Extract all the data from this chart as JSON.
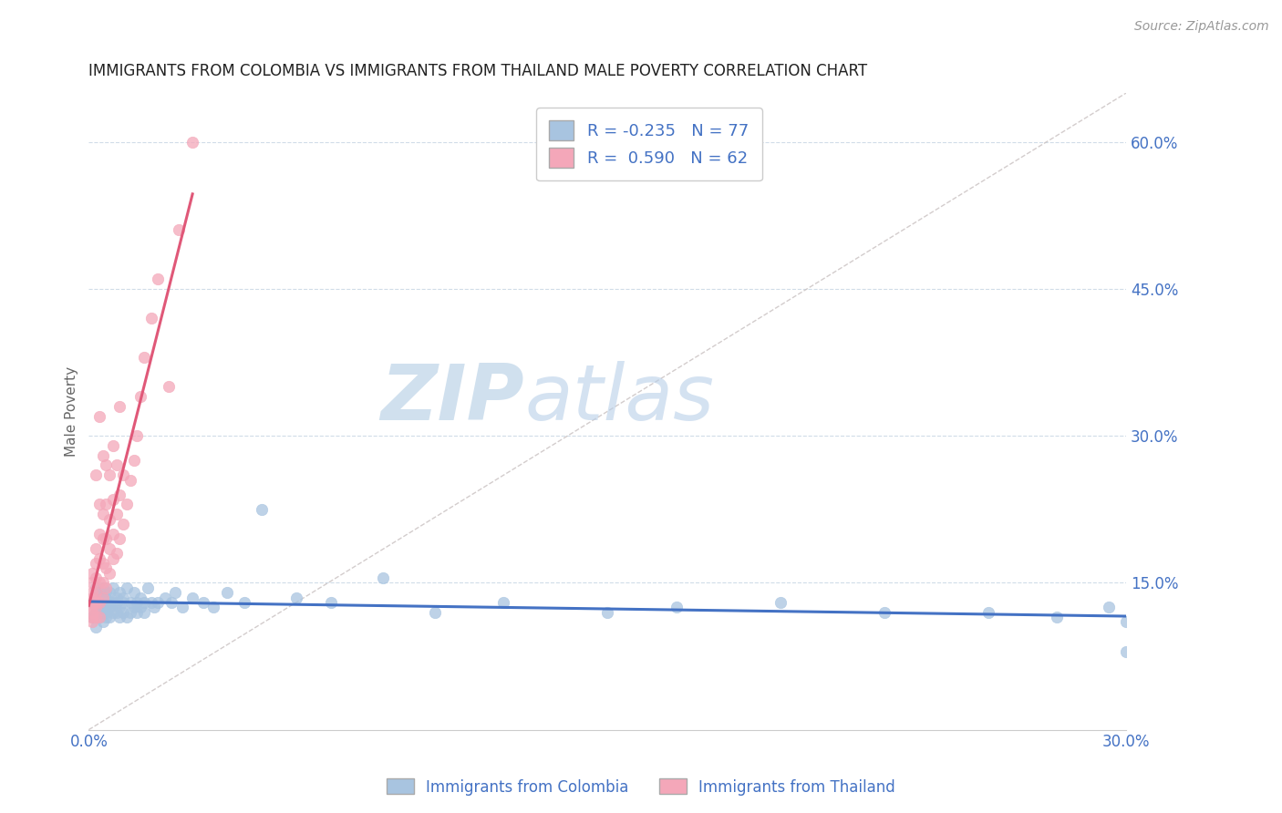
{
  "title": "IMMIGRANTS FROM COLOMBIA VS IMMIGRANTS FROM THAILAND MALE POVERTY CORRELATION CHART",
  "source": "Source: ZipAtlas.com",
  "ylabel": "Male Poverty",
  "colombia_R": -0.235,
  "colombia_N": 77,
  "thailand_R": 0.59,
  "thailand_N": 62,
  "xlim": [
    0.0,
    0.3
  ],
  "ylim": [
    0.0,
    0.65
  ],
  "yticks": [
    0.15,
    0.3,
    0.45,
    0.6
  ],
  "ytick_labels": [
    "15.0%",
    "30.0%",
    "45.0%",
    "60.0%"
  ],
  "colombia_color": "#a8c4e0",
  "thailand_color": "#f4a7b9",
  "colombia_line_color": "#4472c4",
  "thailand_line_color": "#e05878",
  "axis_label_color": "#4472c4",
  "grid_color": "#d0dce8",
  "watermark_color": "#d0e0ee",
  "colombia_scatter_x": [
    0.001,
    0.001,
    0.002,
    0.002,
    0.002,
    0.002,
    0.003,
    0.003,
    0.003,
    0.003,
    0.003,
    0.004,
    0.004,
    0.004,
    0.004,
    0.004,
    0.005,
    0.005,
    0.005,
    0.005,
    0.005,
    0.006,
    0.006,
    0.006,
    0.006,
    0.007,
    0.007,
    0.007,
    0.008,
    0.008,
    0.008,
    0.009,
    0.009,
    0.009,
    0.01,
    0.01,
    0.01,
    0.011,
    0.011,
    0.012,
    0.012,
    0.013,
    0.013,
    0.014,
    0.014,
    0.015,
    0.015,
    0.016,
    0.016,
    0.017,
    0.018,
    0.019,
    0.02,
    0.022,
    0.024,
    0.025,
    0.027,
    0.03,
    0.033,
    0.036,
    0.04,
    0.045,
    0.05,
    0.06,
    0.07,
    0.085,
    0.1,
    0.12,
    0.15,
    0.17,
    0.2,
    0.23,
    0.26,
    0.28,
    0.295,
    0.3,
    0.3
  ],
  "colombia_scatter_y": [
    0.13,
    0.115,
    0.13,
    0.145,
    0.12,
    0.105,
    0.135,
    0.125,
    0.14,
    0.115,
    0.12,
    0.135,
    0.12,
    0.145,
    0.11,
    0.13,
    0.135,
    0.12,
    0.14,
    0.115,
    0.125,
    0.14,
    0.13,
    0.115,
    0.125,
    0.13,
    0.12,
    0.145,
    0.135,
    0.12,
    0.13,
    0.14,
    0.125,
    0.115,
    0.135,
    0.12,
    0.13,
    0.145,
    0.115,
    0.13,
    0.12,
    0.14,
    0.125,
    0.13,
    0.12,
    0.135,
    0.125,
    0.13,
    0.12,
    0.145,
    0.13,
    0.125,
    0.13,
    0.135,
    0.13,
    0.14,
    0.125,
    0.135,
    0.13,
    0.125,
    0.14,
    0.13,
    0.225,
    0.135,
    0.13,
    0.155,
    0.12,
    0.13,
    0.12,
    0.125,
    0.13,
    0.12,
    0.12,
    0.115,
    0.125,
    0.11,
    0.08
  ],
  "thailand_scatter_x": [
    0.001,
    0.001,
    0.001,
    0.001,
    0.001,
    0.001,
    0.001,
    0.001,
    0.001,
    0.002,
    0.002,
    0.002,
    0.002,
    0.002,
    0.002,
    0.002,
    0.002,
    0.003,
    0.003,
    0.003,
    0.003,
    0.003,
    0.003,
    0.003,
    0.004,
    0.004,
    0.004,
    0.004,
    0.004,
    0.004,
    0.005,
    0.005,
    0.005,
    0.005,
    0.005,
    0.006,
    0.006,
    0.006,
    0.006,
    0.007,
    0.007,
    0.007,
    0.007,
    0.008,
    0.008,
    0.008,
    0.009,
    0.009,
    0.009,
    0.01,
    0.01,
    0.011,
    0.012,
    0.013,
    0.014,
    0.015,
    0.016,
    0.018,
    0.02,
    0.023,
    0.026,
    0.03
  ],
  "thailand_scatter_y": [
    0.11,
    0.115,
    0.12,
    0.125,
    0.13,
    0.135,
    0.14,
    0.15,
    0.16,
    0.115,
    0.125,
    0.13,
    0.14,
    0.155,
    0.17,
    0.185,
    0.26,
    0.115,
    0.13,
    0.15,
    0.175,
    0.2,
    0.23,
    0.32,
    0.135,
    0.15,
    0.17,
    0.195,
    0.22,
    0.28,
    0.145,
    0.165,
    0.195,
    0.23,
    0.27,
    0.16,
    0.185,
    0.215,
    0.26,
    0.175,
    0.2,
    0.235,
    0.29,
    0.18,
    0.22,
    0.27,
    0.195,
    0.24,
    0.33,
    0.21,
    0.26,
    0.23,
    0.255,
    0.275,
    0.3,
    0.34,
    0.38,
    0.42,
    0.46,
    0.35,
    0.51,
    0.6
  ],
  "figsize": [
    14.06,
    8.92
  ],
  "dpi": 100
}
